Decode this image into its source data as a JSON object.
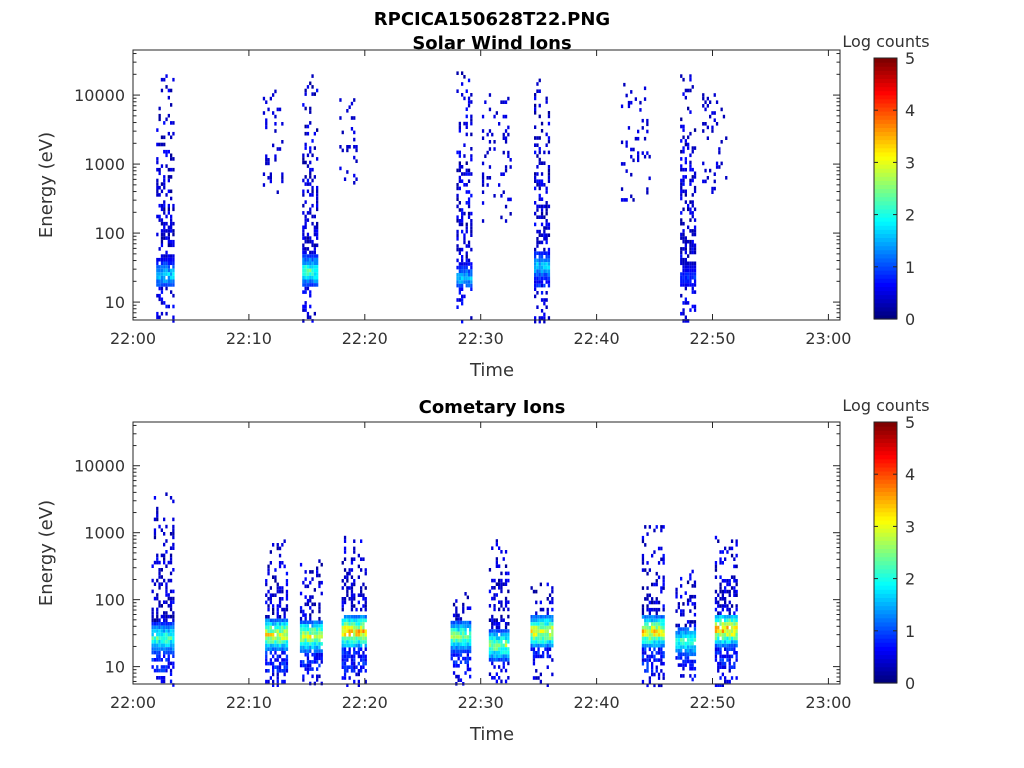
{
  "figure_title": "RPCICA150628T22.PNG",
  "chart_data": [
    {
      "type": "heatmap",
      "title": "Solar Wind Ions",
      "xlabel": "Time",
      "ylabel": "Energy (eV)",
      "x_ticks": [
        "22:00",
        "22:10",
        "22:20",
        "22:30",
        "22:40",
        "22:50",
        "23:00"
      ],
      "x_range_min": [
        0,
        61
      ],
      "y_scale": "log",
      "y_ticks": [
        "10",
        "100",
        "1000",
        "10000"
      ],
      "y_range_eV": [
        5.5,
        45000
      ],
      "colorbar": {
        "label": "Log counts",
        "ticks": [
          "0",
          "1",
          "2",
          "3",
          "4",
          "5"
        ],
        "range": [
          0,
          5
        ]
      },
      "bursts": [
        {
          "t_min": 2.0,
          "dur_min": 1.4,
          "e_low_eV": 18,
          "e_high_eV": 20000,
          "peak_eV": 26,
          "peak_log_counts": 2.0
        },
        {
          "t_min": 14.6,
          "dur_min": 1.3,
          "e_low_eV": 18,
          "e_high_eV": 20000,
          "peak_eV": 30,
          "peak_log_counts": 2.6
        },
        {
          "t_min": 27.9,
          "dur_min": 1.3,
          "e_low_eV": 18,
          "e_high_eV": 22000,
          "peak_eV": 23,
          "peak_log_counts": 1.8
        },
        {
          "t_min": 34.6,
          "dur_min": 1.3,
          "e_low_eV": 18,
          "e_high_eV": 22000,
          "peak_eV": 35,
          "peak_log_counts": 2.0
        },
        {
          "t_min": 47.2,
          "dur_min": 1.3,
          "e_low_eV": 18,
          "e_high_eV": 20000,
          "peak_eV": 24,
          "peak_log_counts": 1.0
        }
      ],
      "sparse_regions": [
        {
          "t_start_min": 11.2,
          "t_end_min": 12.8,
          "e_low_eV": 400,
          "e_high_eV": 12000
        },
        {
          "t_start_min": 17.8,
          "t_end_min": 19.2,
          "e_low_eV": 400,
          "e_high_eV": 9000
        },
        {
          "t_start_min": 30.1,
          "t_end_min": 32.6,
          "e_low_eV": 150,
          "e_high_eV": 12000
        },
        {
          "t_start_min": 42.1,
          "t_end_min": 44.6,
          "e_low_eV": 300,
          "e_high_eV": 15000
        },
        {
          "t_start_min": 49.1,
          "t_end_min": 51.2,
          "e_low_eV": 400,
          "e_high_eV": 12000
        }
      ]
    },
    {
      "type": "heatmap",
      "title": "Cometary Ions",
      "xlabel": "Time",
      "ylabel": "Energy (eV)",
      "x_ticks": [
        "22:00",
        "22:10",
        "22:20",
        "22:30",
        "22:40",
        "22:50",
        "23:00"
      ],
      "x_range_min": [
        0,
        61
      ],
      "y_scale": "log",
      "y_ticks": [
        "10",
        "100",
        "1000",
        "10000"
      ],
      "y_range_eV": [
        5.5,
        45000
      ],
      "colorbar": {
        "label": "Log counts",
        "ticks": [
          "0",
          "1",
          "2",
          "3",
          "4",
          "5"
        ],
        "range": [
          0,
          5
        ]
      },
      "bursts": [
        {
          "t_min": 1.6,
          "dur_min": 1.8,
          "e_low_eV": 9,
          "e_high_eV": 4000,
          "peak_eV": 28,
          "peak_log_counts": 2.6
        },
        {
          "t_min": 11.4,
          "dur_min": 1.8,
          "e_low_eV": 9,
          "e_high_eV": 900,
          "peak_eV": 32,
          "peak_log_counts": 3.6
        },
        {
          "t_min": 14.4,
          "dur_min": 1.8,
          "e_low_eV": 9,
          "e_high_eV": 400,
          "peak_eV": 30,
          "peak_log_counts": 3.4
        },
        {
          "t_min": 18.0,
          "dur_min": 2.0,
          "e_low_eV": 9,
          "e_high_eV": 900,
          "peak_eV": 35,
          "peak_log_counts": 4.0
        },
        {
          "t_min": 27.4,
          "dur_min": 1.6,
          "e_low_eV": 12,
          "e_high_eV": 130,
          "peak_eV": 30,
          "peak_log_counts": 3.0
        },
        {
          "t_min": 30.7,
          "dur_min": 1.6,
          "e_low_eV": 12,
          "e_high_eV": 800,
          "peak_eV": 22,
          "peak_log_counts": 3.0
        },
        {
          "t_min": 34.3,
          "dur_min": 1.8,
          "e_low_eV": 15,
          "e_high_eV": 180,
          "peak_eV": 35,
          "peak_log_counts": 3.6
        },
        {
          "t_min": 43.9,
          "dur_min": 1.8,
          "e_low_eV": 9,
          "e_high_eV": 1300,
          "peak_eV": 35,
          "peak_log_counts": 3.8
        },
        {
          "t_min": 46.8,
          "dur_min": 1.6,
          "e_low_eV": 10,
          "e_high_eV": 280,
          "peak_eV": 25,
          "peak_log_counts": 2.6
        },
        {
          "t_min": 50.2,
          "dur_min": 1.8,
          "e_low_eV": 10,
          "e_high_eV": 900,
          "peak_eV": 38,
          "peak_log_counts": 4.0
        }
      ],
      "sparse_regions": []
    }
  ]
}
